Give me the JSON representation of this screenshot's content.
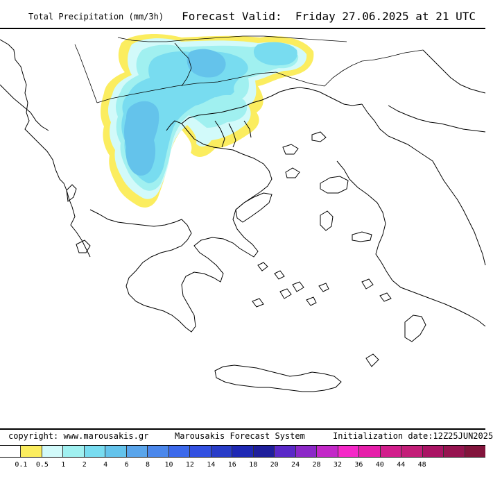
{
  "header": {
    "title": "Total Precipitation (mm/3h)",
    "forecast_valid": "Forecast Valid:  Friday 27.06.2025 at 21 UTC"
  },
  "footer": {
    "copyright": "copyright: www.marousakis.gr",
    "system": "Marousakis Forecast System",
    "init": "Initialization date:12Z25JUN2025"
  },
  "legend": {
    "colors": [
      "#ffffff",
      "#fbed5f",
      "#d2fafa",
      "#a0f0f0",
      "#78dcf0",
      "#64c3eb",
      "#5aa5eb",
      "#4b87eb",
      "#3c69eb",
      "#3250e1",
      "#283cc8",
      "#1e28b4",
      "#1e1e9b",
      "#5a28c8",
      "#8c28c8",
      "#c328c8",
      "#f528c8",
      "#e61eaa",
      "#d21e8c",
      "#c31e78",
      "#aa1464",
      "#961450",
      "#82143c"
    ],
    "ticks": [
      "0.1",
      "0.5",
      "1",
      "2",
      "4",
      "6",
      "8",
      "10",
      "12",
      "14",
      "16",
      "18",
      "20",
      "24",
      "28",
      "32",
      "36",
      "40",
      "44",
      "48"
    ]
  },
  "map": {
    "region": "Greece / Balkans",
    "precip_colors": {
      "level_0_5": "#fbed5f",
      "level_1": "#d2fafa",
      "level_2": "#a0f0f0",
      "level_4": "#78dcf0",
      "level_6": "#64c3eb"
    }
  }
}
